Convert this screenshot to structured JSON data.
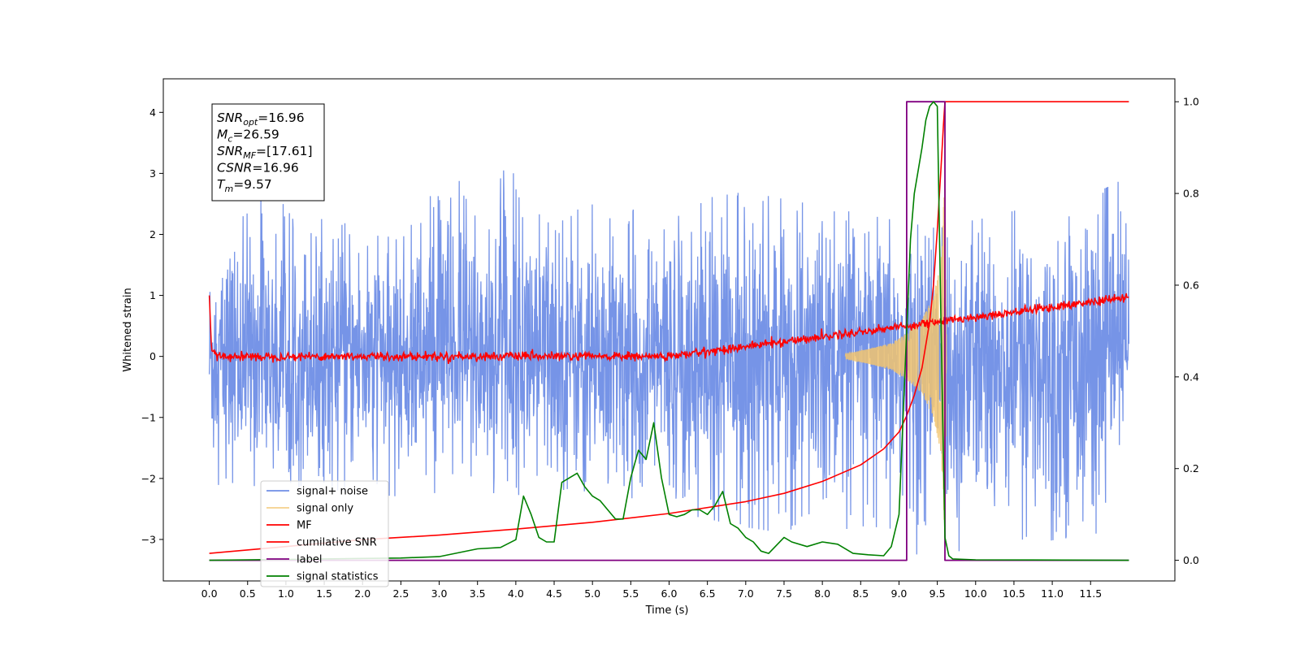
{
  "chart_data": {
    "type": "line",
    "xlabel": "Time (s)",
    "ylabel": "Whitened strain",
    "xlim": [
      -0.6,
      12.6
    ],
    "ylim": [
      -3.68,
      4.55
    ],
    "y2lim": [
      -0.045,
      1.05
    ],
    "x_ticks": [
      "0.0",
      "0.5",
      "1.0",
      "1.5",
      "2.0",
      "2.5",
      "3.0",
      "3.5",
      "4.0",
      "4.5",
      "5.0",
      "5.5",
      "6.0",
      "6.5",
      "7.0",
      "7.5",
      "8.0",
      "8.5",
      "9.0",
      "9.5",
      "10.0",
      "10.5",
      "11.0",
      "11.5"
    ],
    "x_tick_values": [
      0,
      0.5,
      1,
      1.5,
      2,
      2.5,
      3,
      3.5,
      4,
      4.5,
      5,
      5.5,
      6,
      6.5,
      7,
      7.5,
      8,
      8.5,
      9,
      9.5,
      10,
      10.5,
      11,
      11.5
    ],
    "y_ticks": [
      "−3",
      "−2",
      "−1",
      "0",
      "1",
      "2",
      "3",
      "4"
    ],
    "y_tick_values": [
      -3,
      -2,
      -1,
      0,
      1,
      2,
      3,
      4
    ],
    "y2_ticks": [
      "0.0",
      "0.2",
      "0.4",
      "0.6",
      "0.8",
      "1.0"
    ],
    "y2_tick_values": [
      0,
      0.2,
      0.4,
      0.6,
      0.8,
      1.0
    ],
    "grid": false,
    "legend_position": "lower-left",
    "annotation": {
      "lines": [
        {
          "base": "SNR",
          "sub": "opt",
          "value": "=16.96"
        },
        {
          "base": "M",
          "sub": "c",
          "value": "=26.59"
        },
        {
          "base": "SNR",
          "sub": "MF",
          "value": "=[17.61]"
        },
        {
          "base": "CSNR",
          "sub": "",
          "value": "=16.96"
        },
        {
          "base": "T",
          "sub": "m",
          "value": "=9.57"
        }
      ]
    },
    "series": [
      {
        "name": "signal+ noise",
        "axis": "left",
        "color": "#6f8ee6",
        "description": "noise envelope approximately -1.8 to 1.8, peaks to ±2.5, spikes up to 3.3",
        "x": [
          0,
          0.7,
          2.5,
          3.24,
          5.5,
          7.0,
          9.5,
          11.6,
          12.0
        ],
        "y_upper": [
          1.8,
          2.6,
          1.9,
          3.3,
          2.4,
          2.7,
          2.1,
          2.7,
          2.95
        ],
        "y_lower": [
          -2.25,
          -2.1,
          -2.3,
          -2.2,
          -2.4,
          -2.8,
          -3.3,
          -2.9,
          -0.8
        ]
      },
      {
        "name": "signal only",
        "axis": "left",
        "color": "#f2c46e",
        "x": [
          8.3,
          8.6,
          8.9,
          9.1,
          9.3,
          9.45,
          9.55,
          9.6,
          9.62
        ],
        "amplitude": [
          0.04,
          0.12,
          0.22,
          0.38,
          0.6,
          1.0,
          1.6,
          3.0,
          0.0
        ]
      },
      {
        "name": "MF",
        "axis": "left",
        "color": "#ff0000",
        "x": [
          0,
          0.03,
          0.1,
          6.0,
          12.0
        ],
        "y": [
          1.0,
          0.1,
          0.0,
          0.0,
          0.97
        ],
        "noise_amplitude": 0.08
      },
      {
        "name": "cumilative SNR",
        "axis": "right",
        "color": "#ff0000",
        "x": [
          0,
          1,
          2,
          3,
          4,
          5,
          6,
          7,
          7.5,
          8,
          8.5,
          8.8,
          9.0,
          9.1,
          9.2,
          9.3,
          9.4,
          9.45,
          9.5,
          9.55,
          9.58,
          9.6,
          12.0
        ],
        "y": [
          0.015,
          0.03,
          0.045,
          0.055,
          0.068,
          0.083,
          0.102,
          0.128,
          0.146,
          0.172,
          0.208,
          0.243,
          0.28,
          0.315,
          0.36,
          0.42,
          0.52,
          0.6,
          0.72,
          0.86,
          0.95,
          1.0,
          1.0
        ]
      },
      {
        "name": "label",
        "axis": "right",
        "color": "#800080",
        "x": [
          0,
          9.1,
          9.1,
          9.6,
          9.6,
          12.0
        ],
        "y": [
          0,
          0,
          1,
          1,
          0,
          0
        ]
      },
      {
        "name": "signal statistics",
        "axis": "right",
        "color": "#008000",
        "x": [
          0,
          1.0,
          2.0,
          2.5,
          3.0,
          3.5,
          3.8,
          4.0,
          4.1,
          4.2,
          4.3,
          4.4,
          4.5,
          4.6,
          4.8,
          4.9,
          5.0,
          5.1,
          5.2,
          5.3,
          5.4,
          5.5,
          5.6,
          5.7,
          5.8,
          5.9,
          6.0,
          6.1,
          6.2,
          6.3,
          6.4,
          6.5,
          6.6,
          6.7,
          6.8,
          6.9,
          7.0,
          7.1,
          7.2,
          7.3,
          7.5,
          7.6,
          7.8,
          8.0,
          8.2,
          8.4,
          8.6,
          8.8,
          8.9,
          9.0,
          9.05,
          9.1,
          9.15,
          9.2,
          9.3,
          9.35,
          9.4,
          9.45,
          9.5,
          9.55,
          9.6,
          9.65,
          9.7,
          10.0,
          12.0
        ],
        "y": [
          0.0,
          0.002,
          0.004,
          0.005,
          0.008,
          0.025,
          0.028,
          0.045,
          0.14,
          0.1,
          0.05,
          0.04,
          0.04,
          0.17,
          0.19,
          0.16,
          0.14,
          0.13,
          0.11,
          0.09,
          0.09,
          0.18,
          0.24,
          0.22,
          0.3,
          0.18,
          0.1,
          0.095,
          0.1,
          0.11,
          0.11,
          0.1,
          0.12,
          0.15,
          0.08,
          0.07,
          0.05,
          0.04,
          0.02,
          0.015,
          0.05,
          0.04,
          0.03,
          0.04,
          0.035,
          0.015,
          0.012,
          0.01,
          0.03,
          0.1,
          0.3,
          0.5,
          0.7,
          0.8,
          0.9,
          0.96,
          0.99,
          1.0,
          0.99,
          0.5,
          0.05,
          0.01,
          0.003,
          0.001,
          0.0
        ]
      }
    ]
  }
}
